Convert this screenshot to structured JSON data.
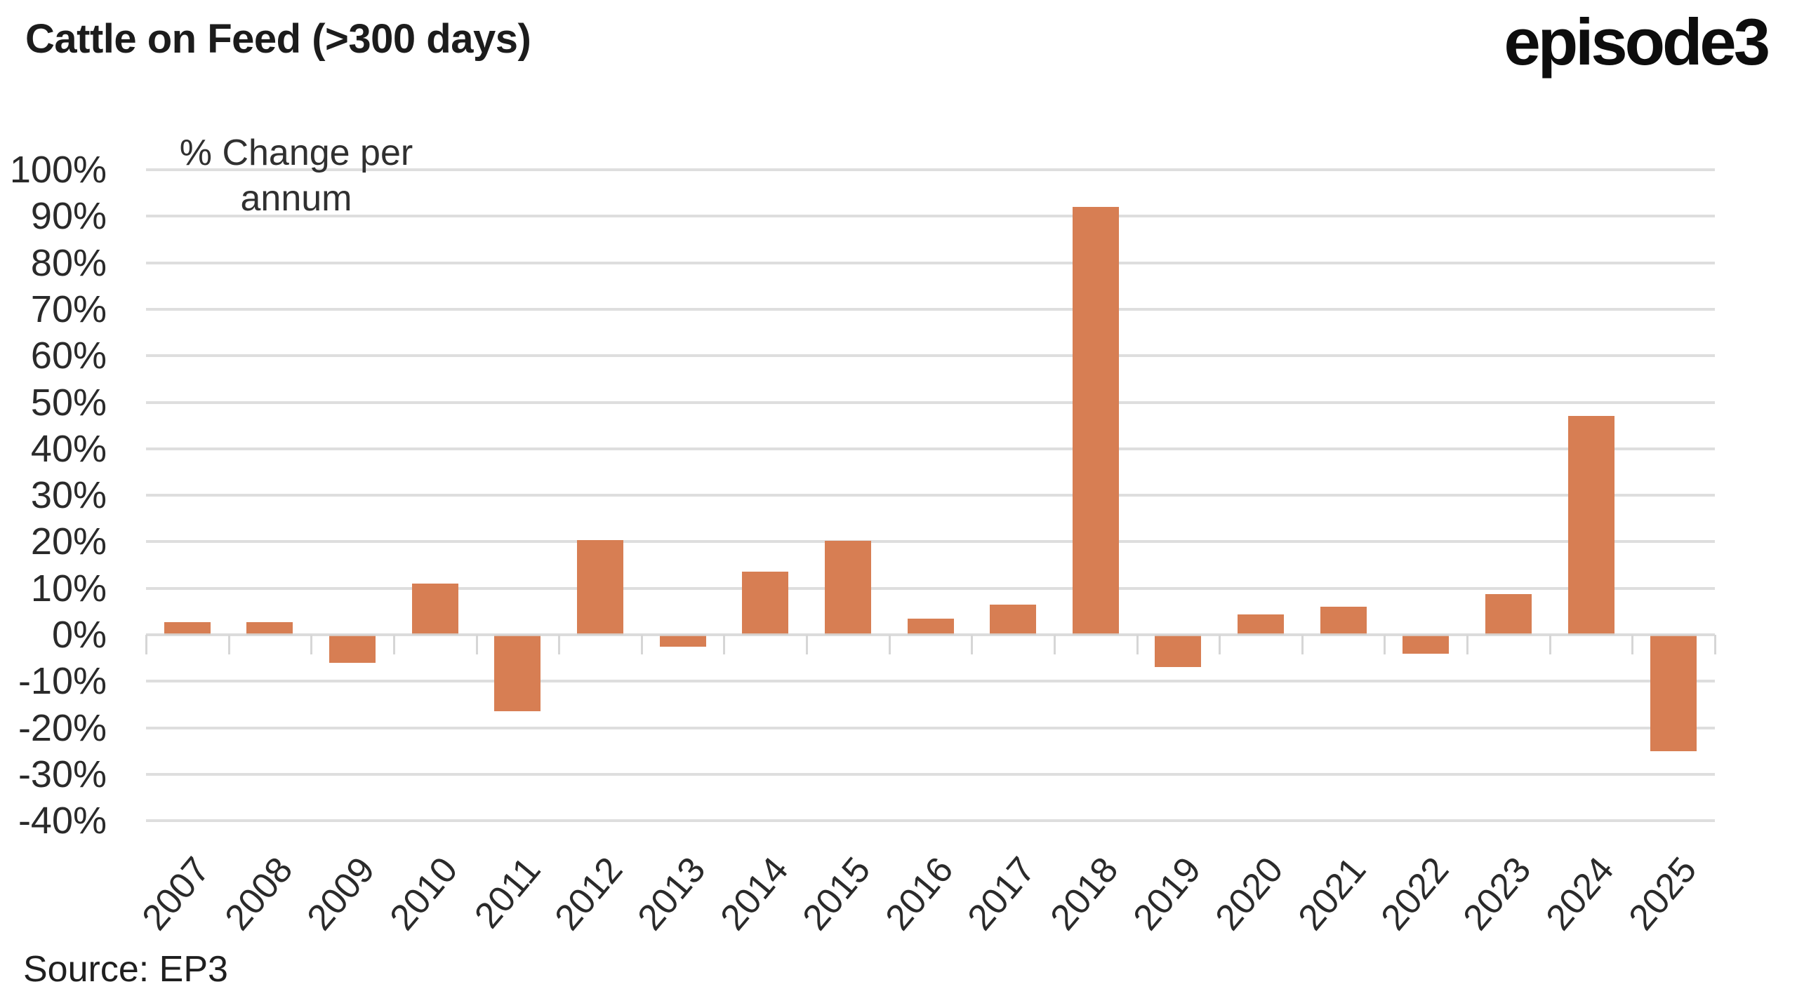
{
  "header": {
    "title": "Cattle on Feed (>300 days)",
    "logo_text": "episode3"
  },
  "footer": {
    "source": "Source: EP3"
  },
  "chart_data": {
    "type": "bar",
    "title": "Cattle on Feed (>300 days)",
    "axis_title": "% Change per annum",
    "axis_title_lines": [
      "% Change per",
      "annum"
    ],
    "categories": [
      "2007",
      "2008",
      "2009",
      "2010",
      "2011",
      "2012",
      "2013",
      "2014",
      "2015",
      "2016",
      "2017",
      "2018",
      "2019",
      "2020",
      "2021",
      "2022",
      "2023",
      "2024",
      "2025"
    ],
    "values": [
      2.7,
      2.7,
      -6,
      11,
      -16.5,
      20.3,
      -2.5,
      13.5,
      20.2,
      3.5,
      6.5,
      92,
      -7,
      4.3,
      6,
      -4,
      8.7,
      47,
      -25
    ],
    "unit": "%",
    "ylim": [
      -40,
      100
    ],
    "y_tick_step": 10,
    "y_tick_values": [
      100,
      90,
      80,
      70,
      60,
      50,
      40,
      30,
      20,
      10,
      0,
      -10,
      -20,
      -30,
      -40
    ],
    "y_tick_labels": [
      "100%",
      "90%",
      "80%",
      "70%",
      "60%",
      "50%",
      "40%",
      "30%",
      "20%",
      "10%",
      "0%",
      "-10%",
      "-20%",
      "-30%",
      "-40%"
    ],
    "grid": true,
    "legend": "none",
    "bar_color": "#d77e53",
    "gridline_color": "#dedede",
    "axis_color": "#d6d6d6",
    "text_color": "#2a2a2a"
  }
}
